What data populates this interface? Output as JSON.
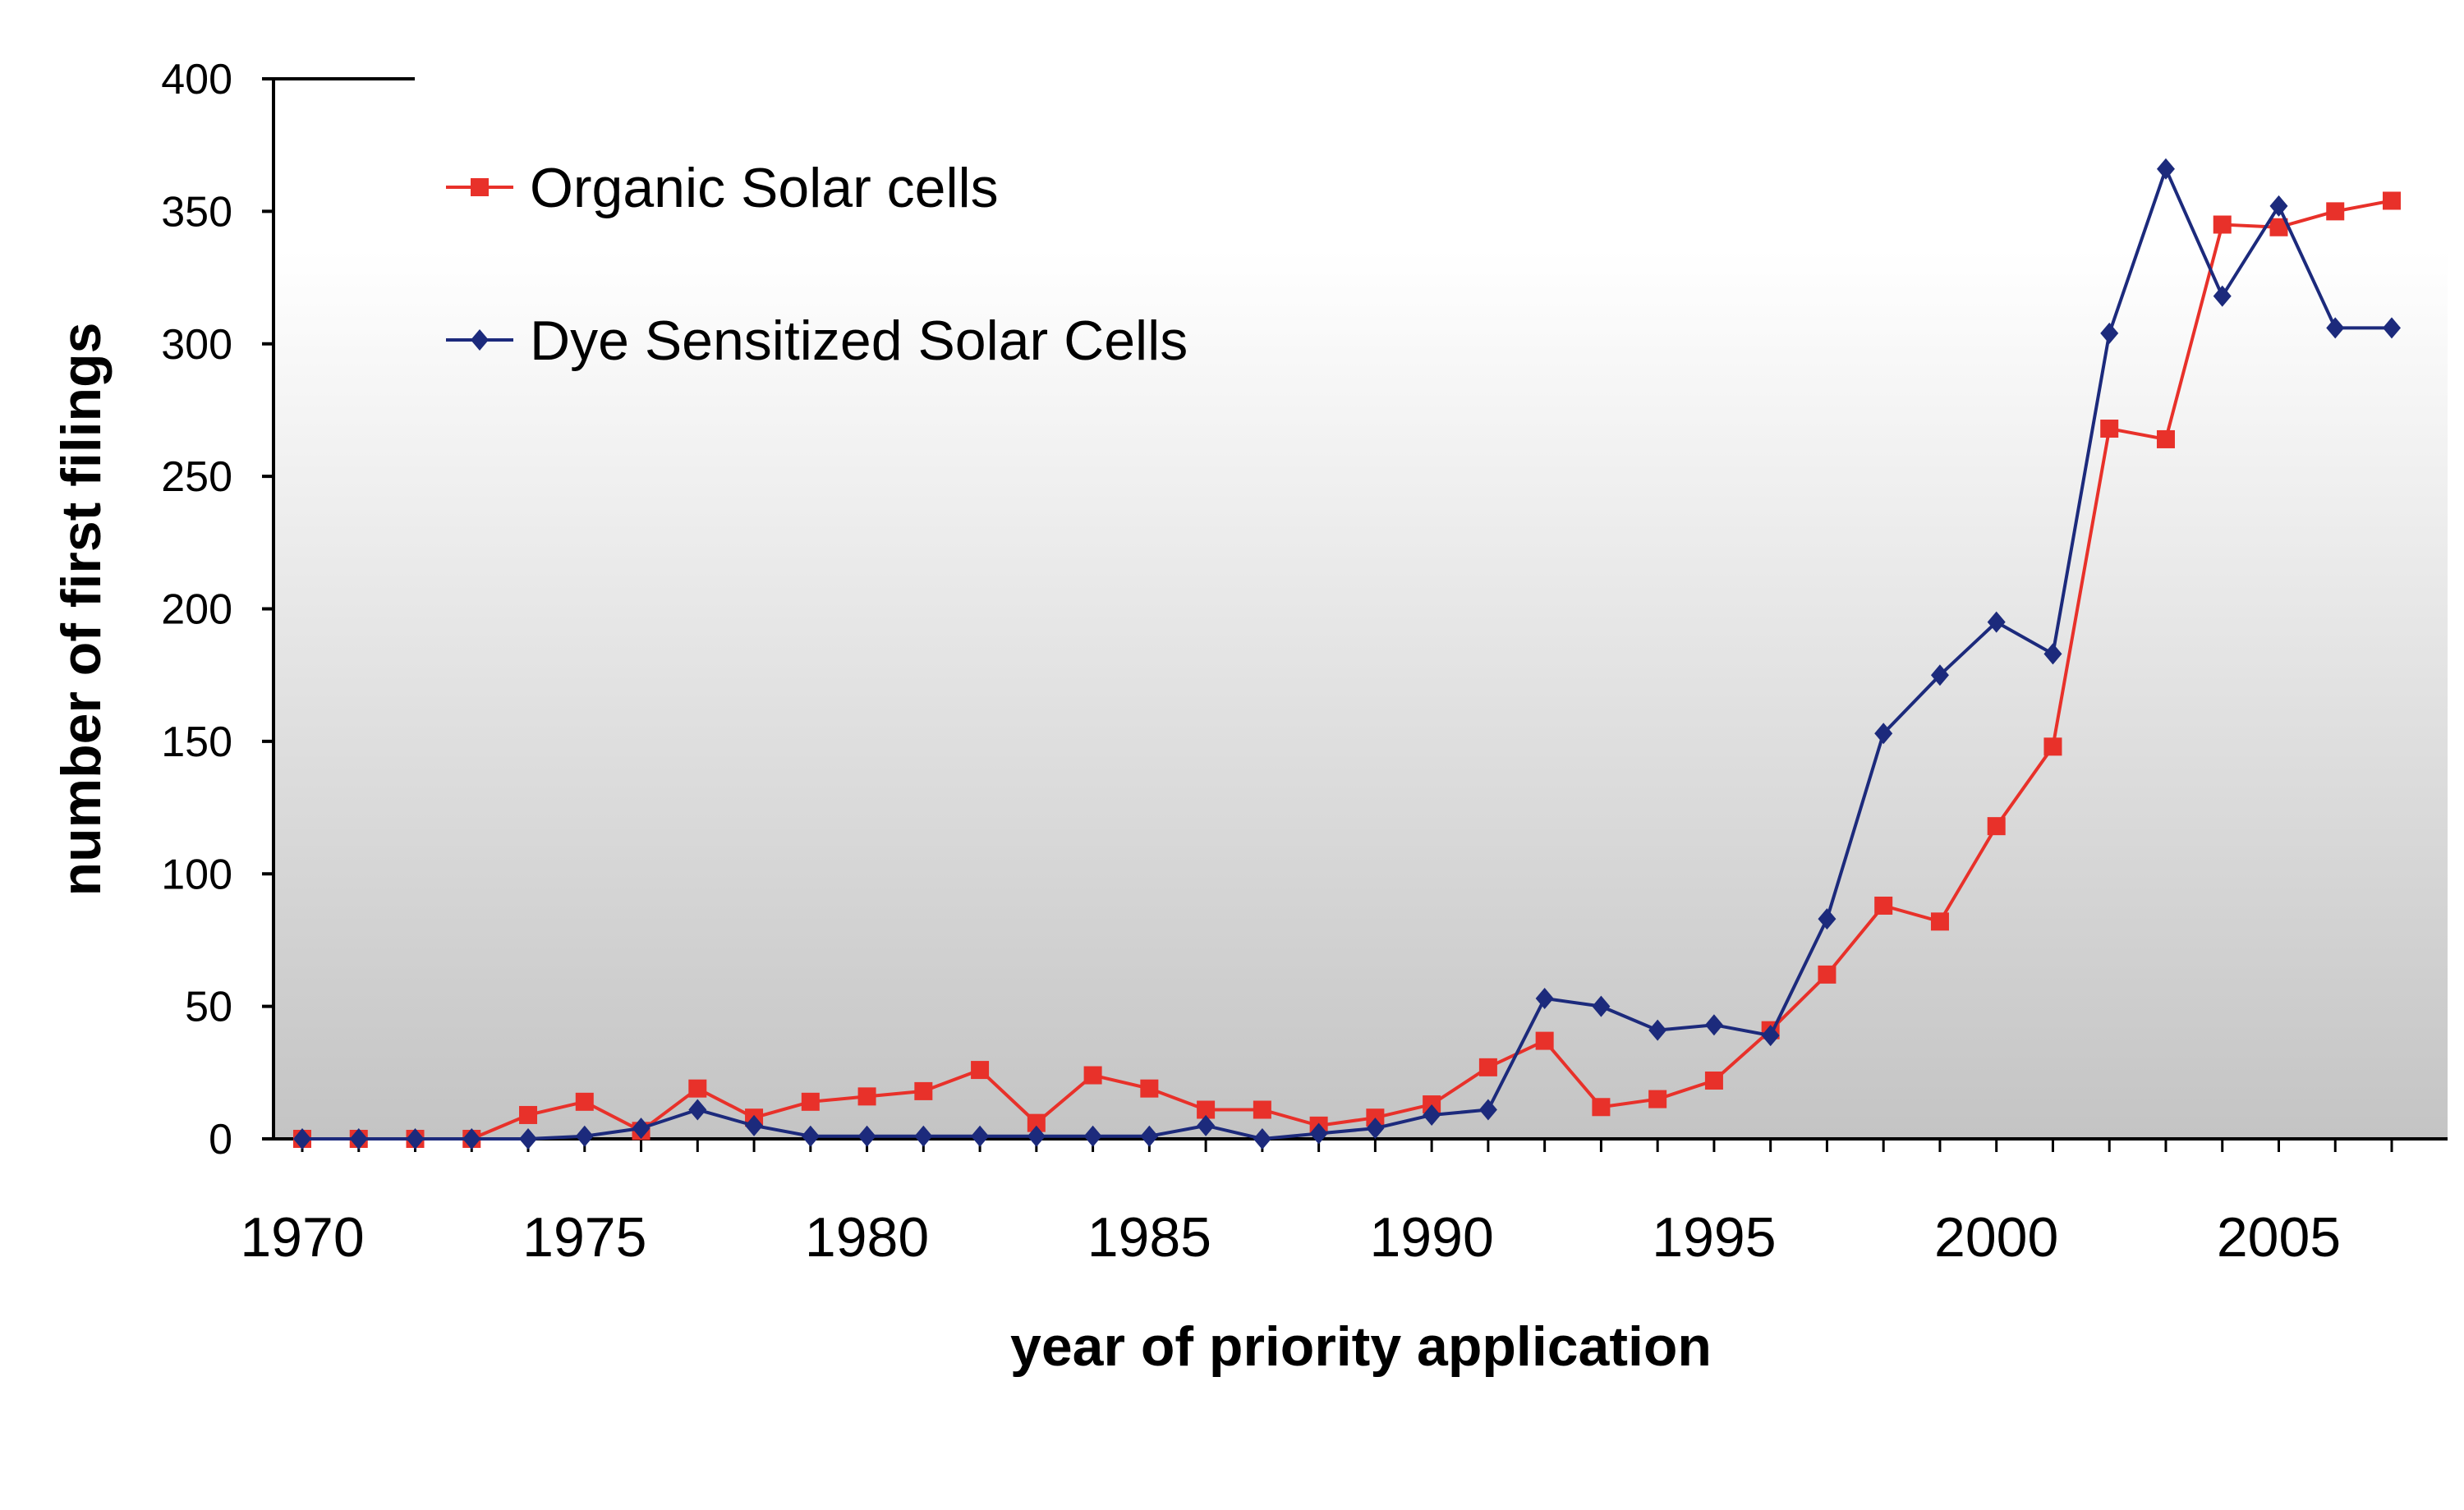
{
  "chart_data": {
    "type": "line",
    "xlabel": "year of priority application",
    "ylabel": "number of first filings",
    "xlim": [
      1970,
      2007
    ],
    "ylim": [
      0,
      400
    ],
    "yticks": [
      0,
      50,
      100,
      150,
      200,
      250,
      300,
      350,
      400
    ],
    "xticks": [
      1970,
      1975,
      1980,
      1985,
      1990,
      1995,
      2000,
      2005
    ],
    "x": [
      1970,
      1971,
      1972,
      1973,
      1974,
      1975,
      1976,
      1977,
      1978,
      1979,
      1980,
      1981,
      1982,
      1983,
      1984,
      1985,
      1986,
      1987,
      1988,
      1989,
      1990,
      1991,
      1992,
      1993,
      1994,
      1995,
      1996,
      1997,
      1998,
      1999,
      2000,
      2001,
      2002,
      2003,
      2004,
      2005,
      2006,
      2007
    ],
    "legend_position": "top-left",
    "background": "vertical gradient white to light grey",
    "series": [
      {
        "name": "Organic Solar cells",
        "color": "#e8312a",
        "marker": "square",
        "values": [
          0,
          0,
          0,
          0,
          9,
          14,
          3,
          19,
          8,
          14,
          16,
          18,
          26,
          6,
          24,
          19,
          11,
          11,
          5,
          8,
          13,
          27,
          37,
          12,
          15,
          22,
          41,
          62,
          88,
          82,
          118,
          148,
          268,
          264,
          345,
          344,
          350,
          354
        ]
      },
      {
        "name": "Dye Sensitized Solar Cells",
        "color": "#1c2a7c",
        "marker": "diamond",
        "values": [
          0,
          0,
          0,
          0,
          0,
          1,
          4,
          11,
          5,
          1,
          1,
          1,
          1,
          1,
          1,
          1,
          5,
          0,
          2,
          4,
          9,
          11,
          53,
          50,
          41,
          43,
          39,
          83,
          153,
          175,
          195,
          183,
          304,
          366,
          318,
          352,
          306,
          306
        ]
      }
    ]
  }
}
